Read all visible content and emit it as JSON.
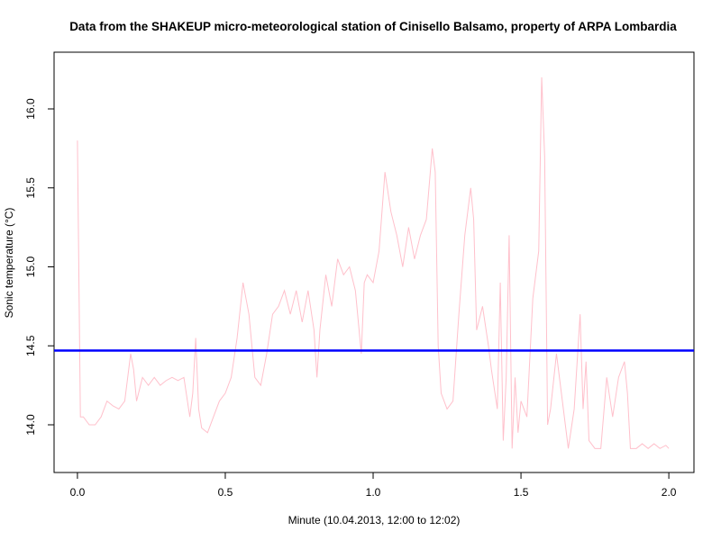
{
  "chart_data": {
    "type": "line",
    "title": "Data from the SHAKEUP micro-meteorological station of Cinisello Balsamo, property of ARPA Lombardia",
    "x_label": "Minute (10.04.2013, 12:00 to 12:02)",
    "y_label": "Sonic temperature (°C)",
    "xlim": [
      -0.079,
      2.085
    ],
    "ylim": [
      13.698,
      16.359
    ],
    "xticks": [
      {
        "value": 0,
        "label": "0.0"
      },
      0.5,
      {
        "value": 1,
        "label": "1.0"
      },
      1.5,
      {
        "value": 2,
        "label": "2.0"
      }
    ],
    "yticks": [
      {
        "value": 14,
        "label": "14.0"
      },
      14.5,
      {
        "value": 15,
        "label": "15.0"
      },
      15.5,
      {
        "value": 16,
        "label": "16.0"
      }
    ],
    "x": [
      0,
      0.01,
      0.02,
      0.04,
      0.06,
      0.08,
      0.1,
      0.12,
      0.14,
      0.16,
      0.18,
      0.19,
      0.2,
      0.22,
      0.24,
      0.26,
      0.28,
      0.3,
      0.32,
      0.34,
      0.36,
      0.38,
      0.39,
      0.4,
      0.41,
      0.42,
      0.44,
      0.46,
      0.48,
      0.5,
      0.52,
      0.54,
      0.56,
      0.58,
      0.6,
      0.62,
      0.64,
      0.66,
      0.68,
      0.7,
      0.72,
      0.74,
      0.76,
      0.78,
      0.8,
      0.81,
      0.82,
      0.84,
      0.86,
      0.88,
      0.9,
      0.92,
      0.94,
      0.96,
      0.97,
      0.98,
      1,
      1.02,
      1.04,
      1.06,
      1.08,
      1.1,
      1.12,
      1.14,
      1.16,
      1.18,
      1.2,
      1.21,
      1.22,
      1.23,
      1.25,
      1.27,
      1.29,
      1.31,
      1.33,
      1.34,
      1.35,
      1.37,
      1.39,
      1.4,
      1.42,
      1.43,
      1.44,
      1.45,
      1.46,
      1.47,
      1.48,
      1.49,
      1.5,
      1.52,
      1.54,
      1.56,
      1.57,
      1.58,
      1.59,
      1.6,
      1.62,
      1.64,
      1.66,
      1.68,
      1.7,
      1.71,
      1.72,
      1.73,
      1.75,
      1.77,
      1.79,
      1.81,
      1.83,
      1.85,
      1.86,
      1.87,
      1.89,
      1.91,
      1.93,
      1.95,
      1.97,
      1.99,
      2
    ],
    "series": [
      {
        "color": "#ffc0cb",
        "values": [
          15.8,
          14.05,
          14.05,
          14,
          14,
          14.05,
          14.15,
          14.12,
          14.1,
          14.15,
          14.45,
          14.35,
          14.15,
          14.3,
          14.25,
          14.3,
          14.25,
          14.28,
          14.3,
          14.28,
          14.3,
          14.05,
          14.2,
          14.55,
          14.1,
          13.98,
          13.95,
          14.05,
          14.15,
          14.2,
          14.3,
          14.55,
          14.9,
          14.7,
          14.3,
          14.25,
          14.45,
          14.7,
          14.75,
          14.85,
          14.7,
          14.85,
          14.65,
          14.85,
          14.6,
          14.3,
          14.6,
          14.95,
          14.75,
          15.05,
          14.95,
          15,
          14.85,
          14.45,
          14.9,
          14.95,
          14.9,
          15.1,
          15.6,
          15.35,
          15.2,
          15,
          15.25,
          15.05,
          15.2,
          15.3,
          15.75,
          15.6,
          14.5,
          14.2,
          14.1,
          14.15,
          14.7,
          15.2,
          15.5,
          15.3,
          14.6,
          14.75,
          14.5,
          14.35,
          14.1,
          14.9,
          13.9,
          14.3,
          15.2,
          13.85,
          14.3,
          13.95,
          14.15,
          14.05,
          14.8,
          15.1,
          16.2,
          15.7,
          14,
          14.1,
          14.45,
          14.15,
          13.85,
          14.1,
          14.7,
          14.1,
          14.4,
          13.9,
          13.85,
          13.85,
          14.3,
          14.05,
          14.3,
          14.4,
          14.2,
          13.85,
          13.85,
          13.88,
          13.85,
          13.88,
          13.85,
          13.87,
          13.85
        ]
      }
    ],
    "hline": {
      "value": 14.47,
      "color": "#0000ff"
    }
  }
}
